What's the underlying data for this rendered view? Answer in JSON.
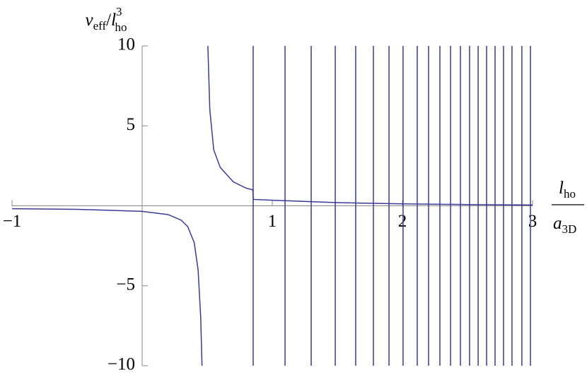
{
  "chart_data": {
    "type": "line",
    "y_label": {
      "base": "v",
      "sub": "eff",
      "sep": "/",
      "base2": "l",
      "sub2": "ho",
      "sup": "3"
    },
    "x_label": {
      "num": "l",
      "num_sub": "ho",
      "den": "a",
      "den_sub": "3D"
    },
    "x": [
      -1,
      -0.5,
      0,
      0.2,
      0.3,
      0.35,
      0.4,
      0.43,
      0.45,
      0.46,
      null,
      0.505,
      0.52,
      0.55,
      0.6,
      0.7,
      0.8,
      0.85,
      0.855,
      1.0,
      1.5,
      2.0,
      2.5,
      3.0
    ],
    "series": [
      {
        "name": "v_eff",
        "color": "#3a3a96",
        "values": [
          -0.18,
          -0.22,
          -0.35,
          -0.55,
          -0.9,
          -1.3,
          -2.3,
          -4,
          -7,
          -10,
          null,
          10,
          6,
          3.5,
          2.4,
          1.5,
          1.1,
          1.0,
          0.4,
          0.35,
          0.2,
          0.12,
          0.08,
          0.05
        ]
      }
    ],
    "vlines": [
      0.853,
      1.098,
      1.299,
      1.484,
      1.641,
      1.777,
      1.897,
      2.005,
      2.114,
      2.201,
      2.288,
      2.37,
      2.446,
      2.516,
      2.582,
      2.647,
      2.712,
      2.777,
      2.842,
      2.918,
      2.984
    ],
    "xlim": [
      -1,
      3
    ],
    "ylim": [
      -10,
      10
    ],
    "xticks": [
      {
        "value": -1,
        "label": "−1"
      },
      1,
      2,
      3
    ],
    "yticks": [
      {
        "value": -10,
        "label": "−10"
      },
      {
        "value": -5,
        "label": "−5"
      },
      5,
      10
    ]
  }
}
